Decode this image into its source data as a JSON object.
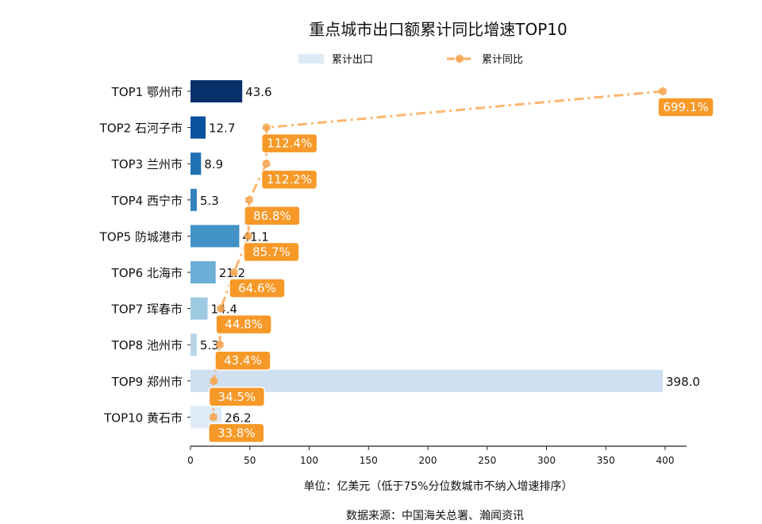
{
  "chart_data": {
    "type": "bar",
    "orientation": "horizontal",
    "title": "重点城市出口额累计同比增速TOP10",
    "xlabel": "单位：亿美元（低于75%分位数城市不纳入增速排序）",
    "source": "数据来源：中国海关总署、瀚闻资讯",
    "ylabel": "",
    "xlim": [
      0,
      418
    ],
    "xticks": [
      0,
      50,
      100,
      150,
      200,
      250,
      300,
      350,
      400
    ],
    "grid": false,
    "legend": {
      "placement": "top-center",
      "entries": [
        {
          "name": "累计出口",
          "type": "bar",
          "color": "#deebf7"
        },
        {
          "name": "累计同比",
          "type": "line",
          "color": "#fdae61"
        }
      ]
    },
    "categories": [
      "TOP1 鄂州市",
      "TOP2 石河子市",
      "TOP3 兰州市",
      "TOP4 西宁市",
      "TOP5 防城港市",
      "TOP6 北海市",
      "TOP7 珲春市",
      "TOP8 池州市",
      "TOP9 郑州市",
      "TOP10 黄石市"
    ],
    "series": [
      {
        "name": "累计出口",
        "type": "bar",
        "unit": "亿美元",
        "values": [
          43.6,
          12.7,
          8.9,
          5.3,
          41.1,
          21.2,
          14.4,
          5.3,
          398.0,
          26.2
        ],
        "value_labels": [
          "43.6",
          "12.7",
          "8.9",
          "5.3",
          "41.1",
          "21.2",
          "14.4",
          "5.3",
          "398.0",
          "26.2"
        ],
        "colors": [
          "#08306b",
          "#08519c",
          "#2171b5",
          "#3182bd",
          "#4292c6",
          "#6baed6",
          "#9ecae1",
          "#b9d5ea",
          "#cfe0f1",
          "#deebf7"
        ]
      },
      {
        "name": "累计同比",
        "type": "line",
        "unit": "%",
        "values": [
          699.1,
          112.4,
          112.2,
          86.8,
          85.7,
          64.6,
          44.8,
          43.4,
          34.5,
          33.8
        ],
        "value_labels": [
          "699.1%",
          "112.4%",
          "112.2%",
          "86.8%",
          "85.7%",
          "64.6%",
          "44.8%",
          "43.4%",
          "34.5%",
          "33.8%"
        ],
        "scaled_to_max_bar": true,
        "color": "#fdae61",
        "label_box_color": "#f7941d",
        "marker": "hexagon",
        "linestyle": "dash-dot"
      }
    ]
  }
}
